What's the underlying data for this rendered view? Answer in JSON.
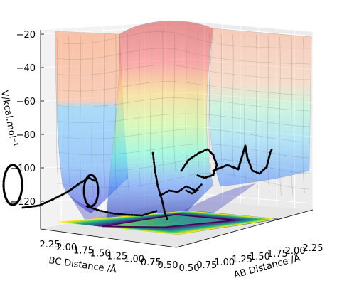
{
  "chart_data": {
    "type": "surface3d",
    "xlabel": "AB Distance /Å",
    "ylabel": "BC Distance /Å",
    "zlabel": "V/kcal.mol⁻¹",
    "x_ticks": [
      "0.50",
      "0.75",
      "1.00",
      "1.25",
      "1.50",
      "1.75",
      "2.00",
      "2.25"
    ],
    "y_ticks": [
      "2.25",
      "2.00",
      "1.75",
      "1.50",
      "1.25",
      "1.00",
      "0.75",
      "0.50"
    ],
    "z_ticks": [
      "−20",
      "−40",
      "−60",
      "−80",
      "−100",
      "−120"
    ],
    "z_tick_values": [
      -20,
      -40,
      -60,
      -80,
      -100,
      -120
    ],
    "xlim": [
      0.5,
      2.4
    ],
    "ylim": [
      0.5,
      2.4
    ],
    "zlim": [
      -130,
      -18
    ],
    "colormap": "jet",
    "contour_colormap": "viridis",
    "surface_alpha": 0.45,
    "trajectory_color": "#000000",
    "grid": true,
    "pane_color": "#f2f2f2"
  }
}
